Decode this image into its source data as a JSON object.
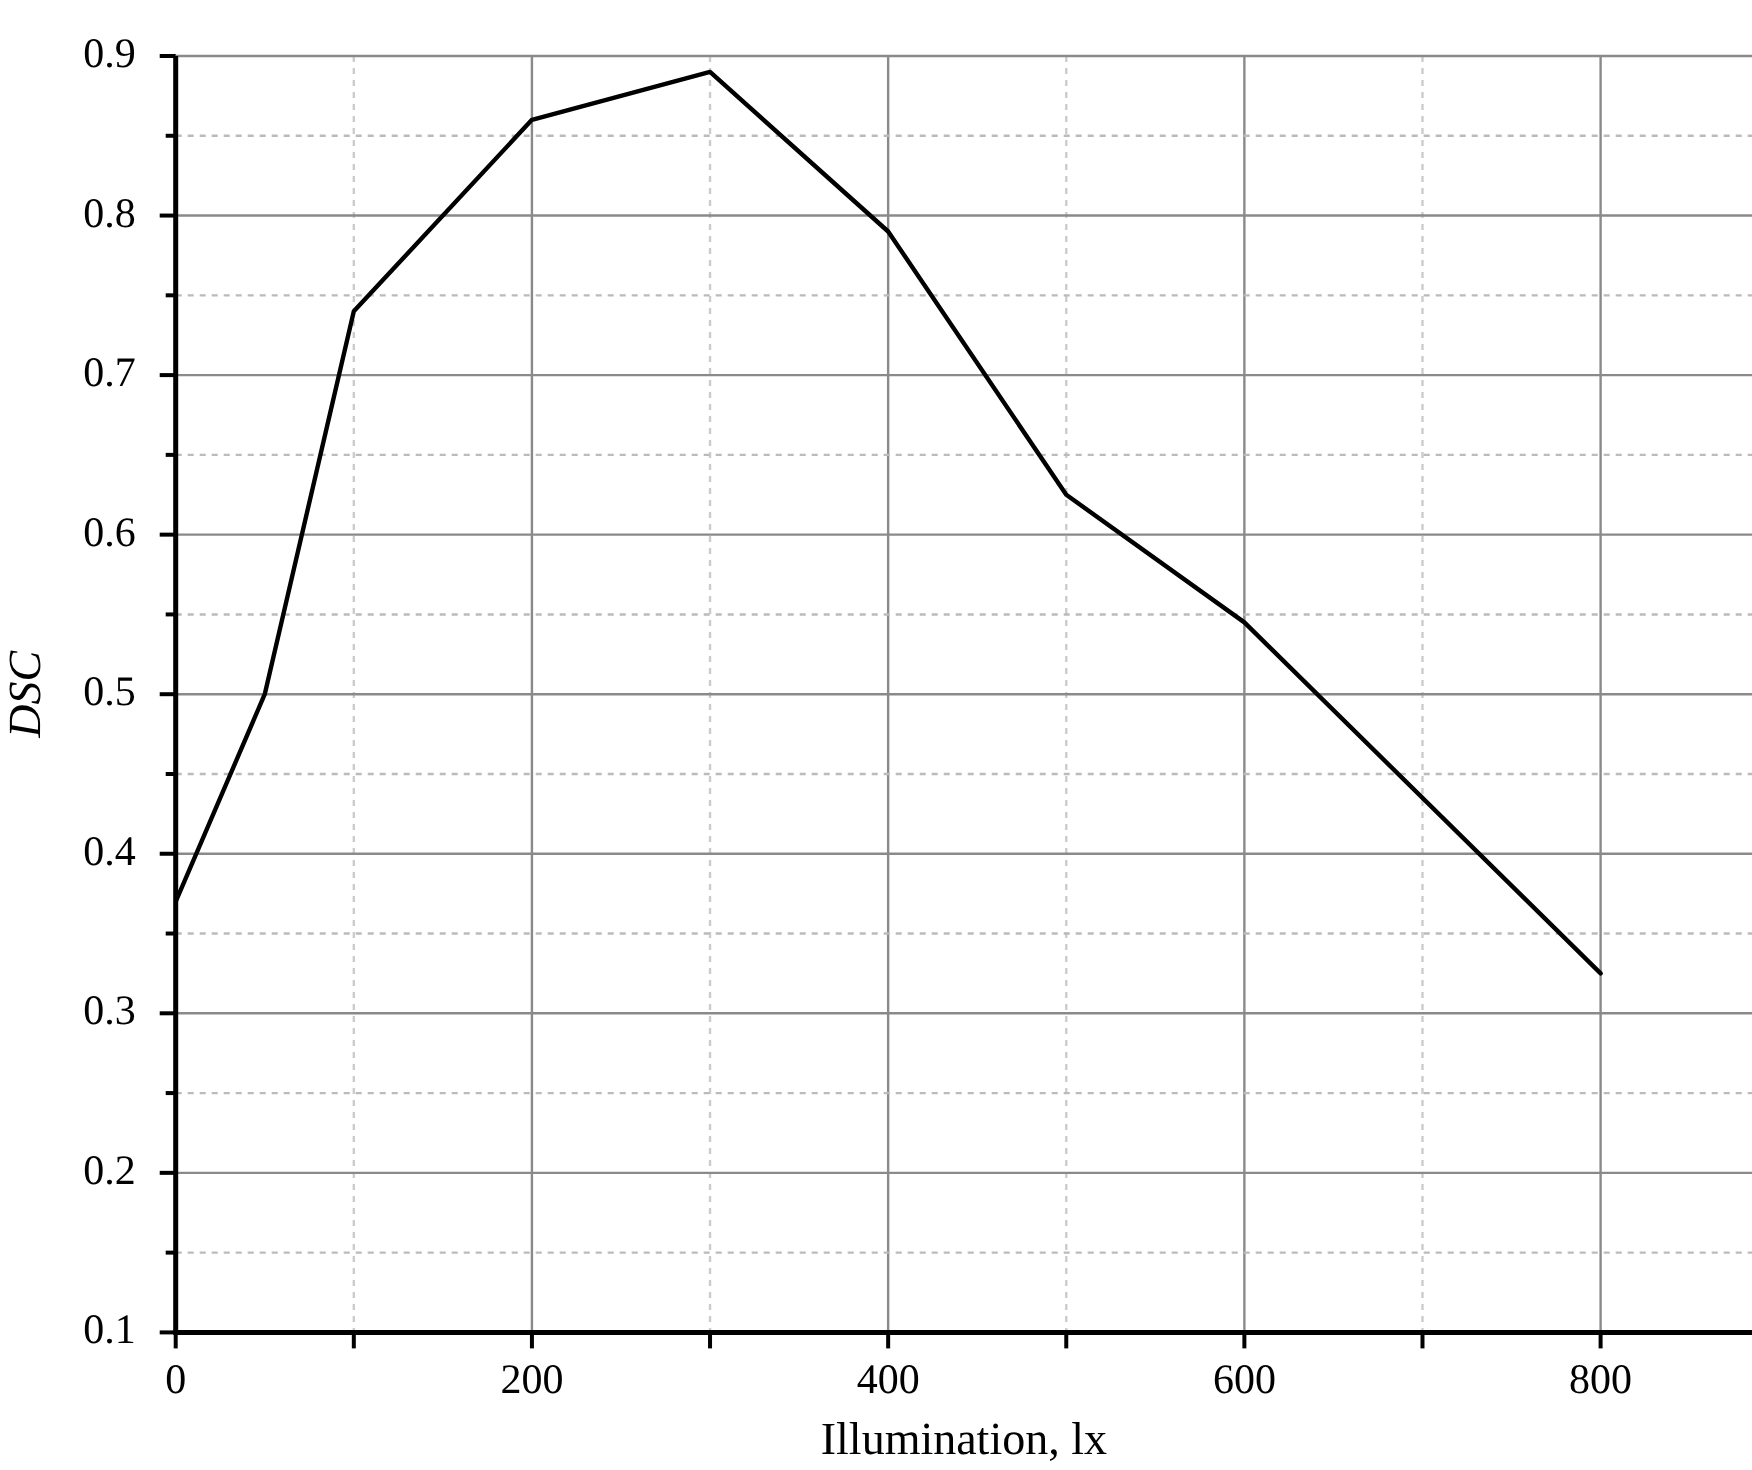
{
  "chart_data": {
    "type": "line",
    "xlabel": "Illumination, lx",
    "ylabel": "DSC",
    "x": [
      0,
      50,
      100,
      200,
      300,
      400,
      500,
      600,
      800
    ],
    "series": [
      {
        "color": "#000000",
        "values": [
          0.37,
          0.5,
          0.74,
          0.86,
          0.89,
          0.79,
          0.625,
          0.545,
          0.325
        ]
      }
    ],
    "xlim": [
      0,
      885
    ],
    "xticks": [
      0,
      {
        "value": 100,
        "label": null
      },
      200,
      {
        "value": 300,
        "label": null
      },
      400,
      {
        "value": 500,
        "label": null
      },
      600,
      {
        "value": 700,
        "label": null
      },
      800
    ],
    "ylim": [
      0.1,
      0.9
    ],
    "yticks": [
      0.1,
      {
        "value": 0.15,
        "label": null
      },
      0.2,
      {
        "value": 0.25,
        "label": null
      },
      0.3,
      {
        "value": 0.35,
        "label": null
      },
      0.4,
      {
        "value": 0.45,
        "label": null
      },
      0.5,
      {
        "value": 0.55,
        "label": null
      },
      0.6,
      {
        "value": 0.65,
        "label": null
      },
      0.7,
      {
        "value": 0.75,
        "label": null
      },
      0.8,
      {
        "value": 0.85,
        "label": null
      },
      0.9
    ],
    "grid": true,
    "marker": "none",
    "line_style": "solid",
    "legend": false
  }
}
